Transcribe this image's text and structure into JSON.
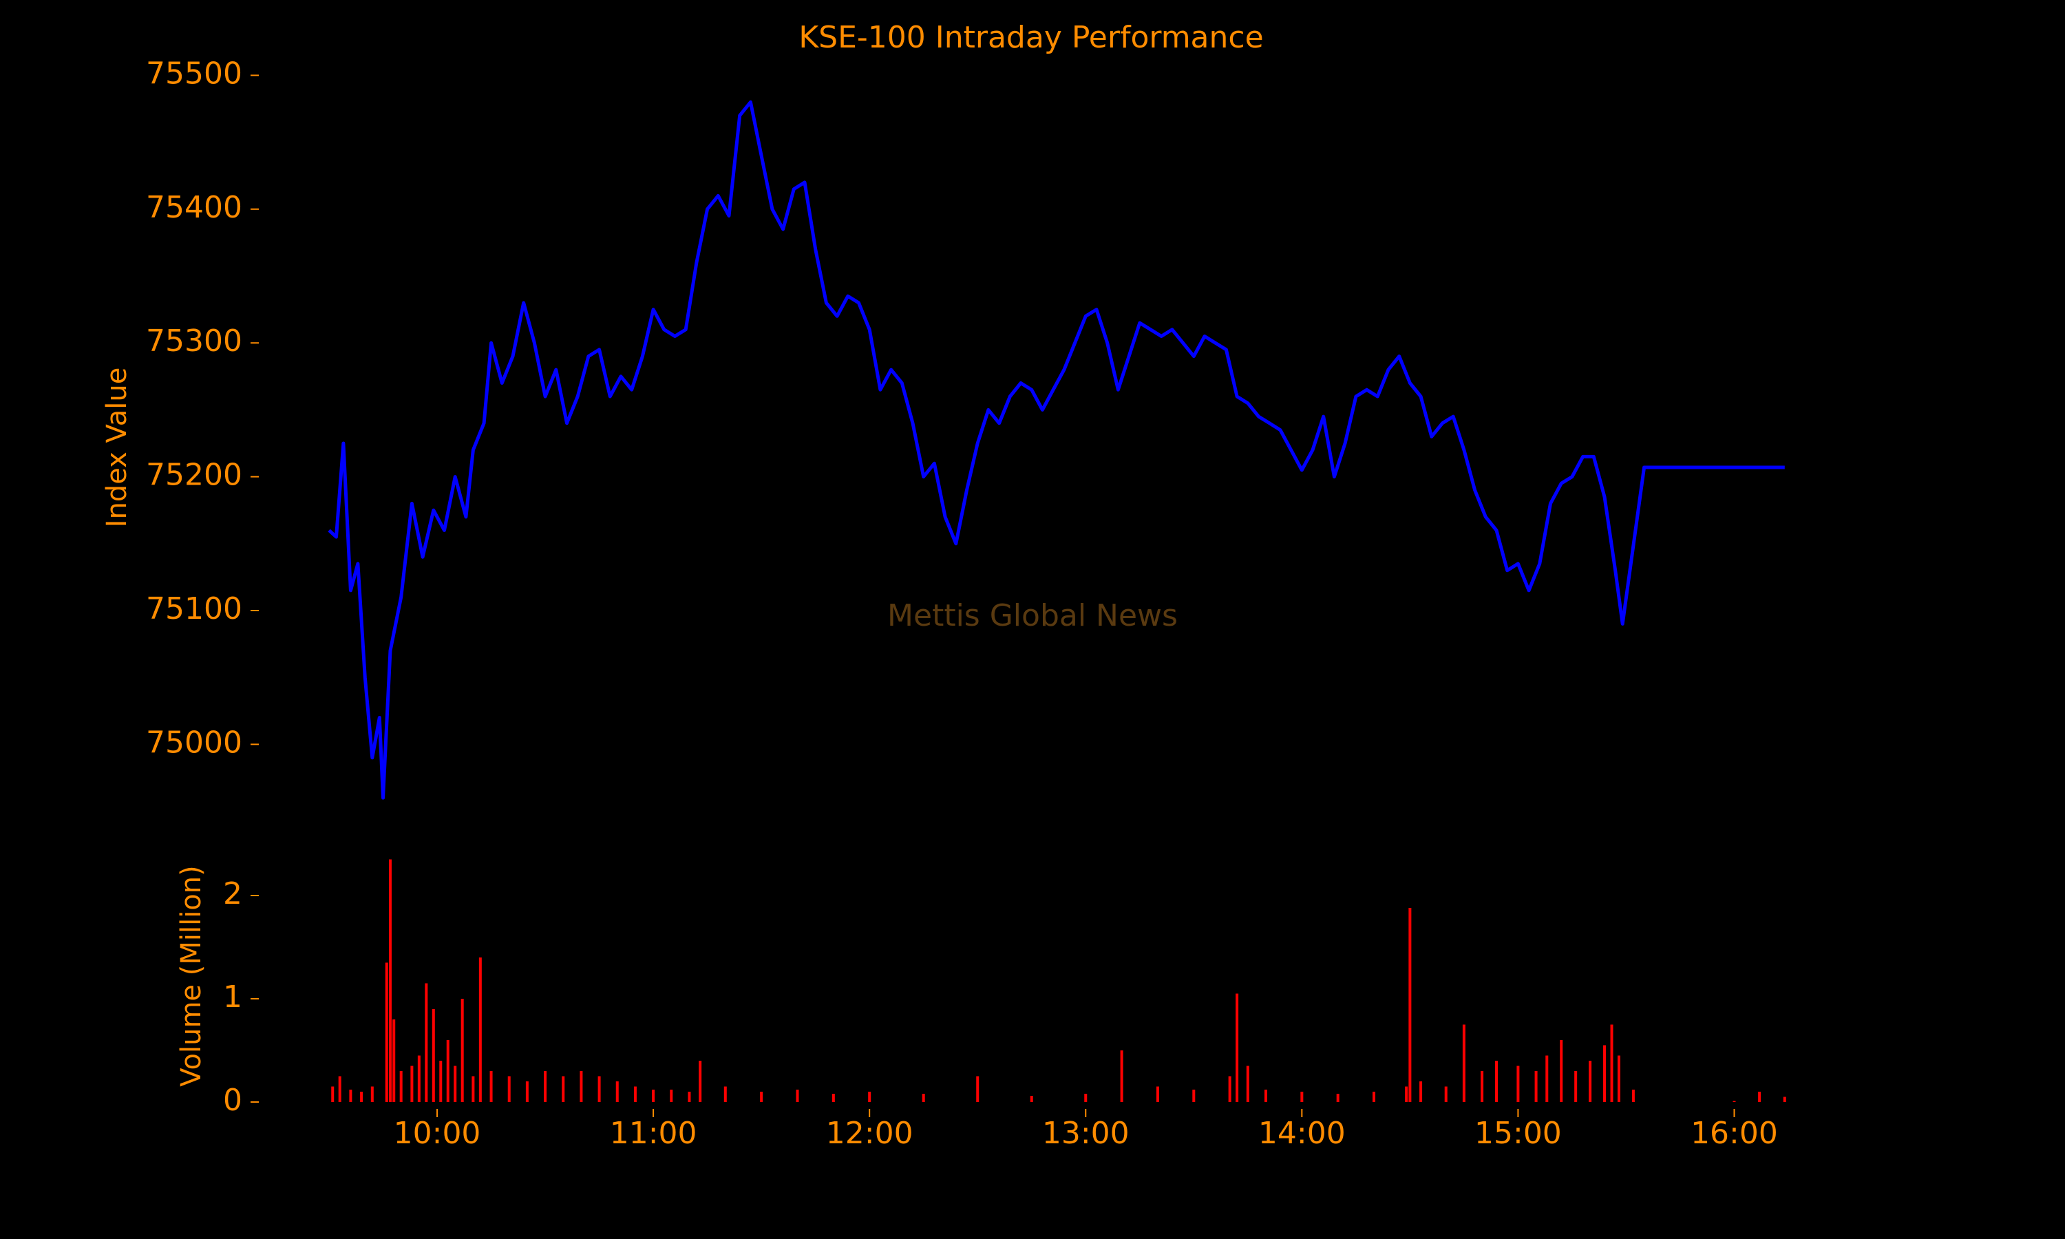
{
  "chart_data": [
    {
      "type": "line",
      "title": "KSE-100 Intraday Performance",
      "ylabel": "Index Value",
      "annotation": "Mettis Global News",
      "series": [
        {
          "name": "KSE-100",
          "color": "#0000ff",
          "x": [
            "09:30",
            "09:32",
            "09:34",
            "09:36",
            "09:38",
            "09:40",
            "09:42",
            "09:44",
            "09:45",
            "09:47",
            "09:50",
            "09:53",
            "09:56",
            "09:59",
            "10:02",
            "10:05",
            "10:08",
            "10:10",
            "10:13",
            "10:15",
            "10:18",
            "10:21",
            "10:24",
            "10:27",
            "10:30",
            "10:33",
            "10:36",
            "10:39",
            "10:42",
            "10:45",
            "10:48",
            "10:51",
            "10:54",
            "10:57",
            "11:00",
            "11:03",
            "11:06",
            "11:09",
            "11:12",
            "11:15",
            "11:18",
            "11:21",
            "11:24",
            "11:27",
            "11:30",
            "11:33",
            "11:36",
            "11:39",
            "11:42",
            "11:45",
            "11:48",
            "11:51",
            "11:54",
            "11:57",
            "12:00",
            "12:03",
            "12:06",
            "12:09",
            "12:12",
            "12:15",
            "12:18",
            "12:21",
            "12:24",
            "12:27",
            "12:30",
            "12:33",
            "12:36",
            "12:39",
            "12:42",
            "12:45",
            "12:48",
            "12:51",
            "12:54",
            "12:57",
            "13:00",
            "13:03",
            "13:06",
            "13:09",
            "13:12",
            "13:15",
            "13:18",
            "13:21",
            "13:24",
            "13:27",
            "13:30",
            "13:33",
            "13:36",
            "13:39",
            "13:42",
            "13:45",
            "13:48",
            "13:51",
            "13:54",
            "13:57",
            "14:00",
            "14:03",
            "14:06",
            "14:09",
            "14:12",
            "14:15",
            "14:18",
            "14:21",
            "14:24",
            "14:27",
            "14:30",
            "14:33",
            "14:36",
            "14:39",
            "14:42",
            "14:45",
            "14:48",
            "14:51",
            "14:54",
            "14:57",
            "15:00",
            "15:03",
            "15:06",
            "15:09",
            "15:12",
            "15:15",
            "15:18",
            "15:21",
            "15:24",
            "15:27",
            "15:29",
            "15:35",
            "16:14"
          ],
          "values": [
            75160,
            75155,
            75225,
            75115,
            75135,
            75050,
            74990,
            75020,
            74960,
            75070,
            75110,
            75180,
            75140,
            75175,
            75160,
            75200,
            75170,
            75220,
            75240,
            75300,
            75270,
            75290,
            75330,
            75300,
            75260,
            75280,
            75240,
            75260,
            75290,
            75295,
            75260,
            75275,
            75265,
            75290,
            75325,
            75310,
            75305,
            75310,
            75360,
            75400,
            75410,
            75395,
            75470,
            75480,
            75440,
            75400,
            75385,
            75415,
            75420,
            75370,
            75330,
            75320,
            75335,
            75330,
            75310,
            75265,
            75280,
            75270,
            75240,
            75200,
            75210,
            75170,
            75150,
            75190,
            75225,
            75250,
            75240,
            75260,
            75270,
            75265,
            75250,
            75265,
            75280,
            75300,
            75320,
            75325,
            75300,
            75265,
            75290,
            75315,
            75310,
            75305,
            75310,
            75300,
            75290,
            75305,
            75300,
            75295,
            75260,
            75255,
            75245,
            75240,
            75235,
            75220,
            75205,
            75220,
            75245,
            75200,
            75225,
            75260,
            75265,
            75260,
            75280,
            75290,
            75270,
            75260,
            75230,
            75240,
            75245,
            75220,
            75190,
            75170,
            75160,
            75130,
            75135,
            75115,
            75135,
            75180,
            75195,
            75200,
            75215,
            75215,
            75185,
            75130,
            75090,
            75207,
            75207
          ]
        }
      ],
      "xlim": [
        "09:30",
        "16:15"
      ],
      "ylim": [
        74940,
        75510
      ],
      "yticks": [
        75000,
        75100,
        75200,
        75300,
        75400,
        75500
      ]
    },
    {
      "type": "bar",
      "ylabel": "Volume (Million)",
      "color": "#ff0000",
      "x": [
        "09:31",
        "09:33",
        "09:36",
        "09:39",
        "09:42",
        "09:46",
        "09:47",
        "09:48",
        "09:50",
        "09:53",
        "09:55",
        "09:57",
        "09:59",
        "10:01",
        "10:03",
        "10:05",
        "10:07",
        "10:10",
        "10:12",
        "10:15",
        "10:20",
        "10:25",
        "10:30",
        "10:35",
        "10:40",
        "10:45",
        "10:50",
        "10:55",
        "11:00",
        "11:05",
        "11:10",
        "11:13",
        "11:20",
        "11:30",
        "11:40",
        "11:50",
        "12:00",
        "12:15",
        "12:30",
        "12:45",
        "13:00",
        "13:10",
        "13:20",
        "13:30",
        "13:40",
        "13:42",
        "13:45",
        "13:50",
        "14:00",
        "14:10",
        "14:20",
        "14:29",
        "14:30",
        "14:33",
        "14:40",
        "14:45",
        "14:50",
        "14:54",
        "15:00",
        "15:05",
        "15:08",
        "15:12",
        "15:16",
        "15:20",
        "15:24",
        "15:26",
        "15:28",
        "15:32",
        "16:00",
        "16:07",
        "16:14"
      ],
      "values": [
        0.15,
        0.25,
        0.12,
        0.1,
        0.15,
        1.35,
        2.35,
        0.8,
        0.3,
        0.35,
        0.45,
        1.15,
        0.9,
        0.4,
        0.6,
        0.35,
        1.0,
        0.25,
        1.4,
        0.3,
        0.25,
        0.2,
        0.3,
        0.25,
        0.3,
        0.25,
        0.2,
        0.15,
        0.12,
        0.12,
        0.1,
        0.4,
        0.15,
        0.1,
        0.12,
        0.08,
        0.1,
        0.08,
        0.25,
        0.06,
        0.08,
        0.5,
        0.15,
        0.12,
        0.25,
        1.05,
        0.35,
        0.12,
        0.1,
        0.08,
        0.1,
        0.15,
        1.88,
        0.2,
        0.15,
        0.75,
        0.3,
        0.4,
        0.35,
        0.3,
        0.45,
        0.6,
        0.3,
        0.4,
        0.55,
        0.75,
        0.45,
        0.12,
        0.01,
        0.1,
        0.05
      ],
      "xlim": [
        "09:30",
        "16:15"
      ],
      "xticks": [
        "10:00",
        "11:00",
        "12:00",
        "13:00",
        "14:00",
        "15:00",
        "16:00"
      ],
      "ylim": [
        0,
        2.4
      ],
      "yticks": [
        0,
        1,
        2
      ]
    }
  ]
}
